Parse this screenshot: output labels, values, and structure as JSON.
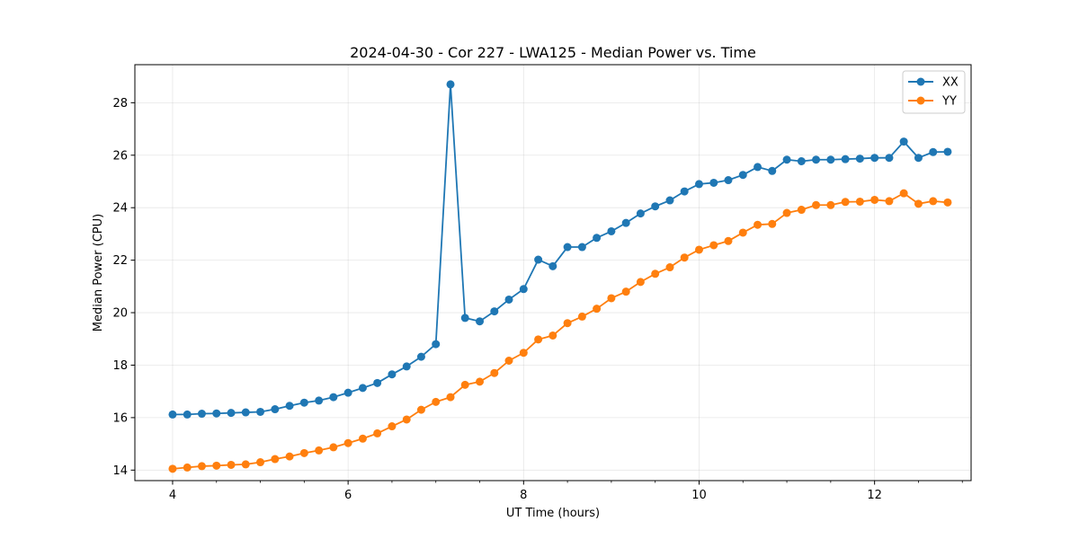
{
  "chart_data": {
    "type": "line",
    "title": "2024-04-30 - Cor 227 - LWA125 - Median Power vs. Time",
    "xlabel": "UT Time (hours)",
    "ylabel": "Median Power (CPU)",
    "xlim": [
      3.57,
      13.1
    ],
    "ylim": [
      13.6,
      29.45
    ],
    "xticks": [
      4,
      6,
      8,
      10,
      12
    ],
    "yticks": [
      14,
      16,
      18,
      20,
      22,
      24,
      26,
      28
    ],
    "xticks_minor_step": 0.5,
    "grid": true,
    "legend_position": "top-right",
    "x": [
      4.0,
      4.167,
      4.333,
      4.5,
      4.667,
      4.833,
      5.0,
      5.167,
      5.333,
      5.5,
      5.667,
      5.833,
      6.0,
      6.167,
      6.333,
      6.5,
      6.667,
      6.833,
      7.0,
      7.167,
      7.333,
      7.5,
      7.667,
      7.833,
      8.0,
      8.167,
      8.333,
      8.5,
      8.667,
      8.833,
      9.0,
      9.167,
      9.333,
      9.5,
      9.667,
      9.833,
      10.0,
      10.167,
      10.333,
      10.5,
      10.667,
      10.833,
      11.0,
      11.167,
      11.333,
      11.5,
      11.667,
      11.833,
      12.0,
      12.167,
      12.333,
      12.5,
      12.667,
      12.833
    ],
    "series": [
      {
        "name": "XX",
        "color": "#1f77b4",
        "values": [
          16.12,
          16.12,
          16.15,
          16.16,
          16.18,
          16.2,
          16.22,
          16.32,
          16.45,
          16.57,
          16.65,
          16.78,
          16.95,
          17.13,
          17.32,
          17.65,
          17.95,
          18.32,
          18.8,
          28.7,
          19.8,
          19.67,
          20.05,
          20.5,
          20.9,
          22.02,
          21.77,
          22.5,
          22.5,
          22.85,
          23.1,
          23.42,
          23.78,
          24.05,
          24.28,
          24.62,
          24.9,
          24.95,
          25.05,
          25.25,
          25.55,
          25.4,
          25.83,
          25.77,
          25.83,
          25.83,
          25.85,
          25.87,
          25.9,
          25.9,
          26.52,
          25.9,
          26.12,
          26.13
        ]
      },
      {
        "name": "YY",
        "color": "#ff7f0e",
        "values": [
          14.05,
          14.1,
          14.15,
          14.17,
          14.2,
          14.22,
          14.3,
          14.42,
          14.52,
          14.65,
          14.75,
          14.87,
          15.03,
          15.2,
          15.4,
          15.67,
          15.93,
          16.3,
          16.6,
          16.78,
          17.25,
          17.37,
          17.7,
          18.17,
          18.47,
          18.98,
          19.13,
          19.6,
          19.85,
          20.15,
          20.55,
          20.8,
          21.17,
          21.48,
          21.73,
          22.1,
          22.4,
          22.57,
          22.73,
          23.05,
          23.35,
          23.38,
          23.8,
          23.92,
          24.1,
          24.1,
          24.22,
          24.23,
          24.3,
          24.25,
          24.55,
          24.15,
          24.25,
          24.2
        ]
      }
    ]
  }
}
